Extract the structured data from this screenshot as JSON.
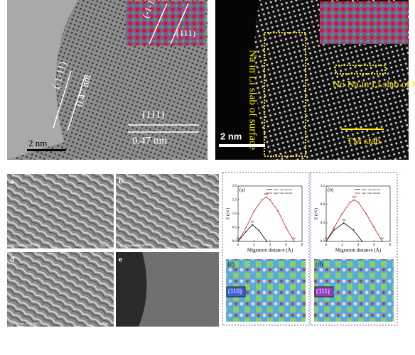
{
  "hrtem_left": {
    "inset_plane_1": "(-1-11)",
    "inset_plane_2": "(111)",
    "plane_1": "(-1-11)",
    "spacing_1": "0.47 nm",
    "plane_2": "(111)",
    "spacing_2": "0.47 nm",
    "scale_bar": "2 nm"
  },
  "haadf_right": {
    "surface_label": "Na in Li slab of surface",
    "bulk_label": "No Na in Li slab of bulk",
    "scale_bar": "2 nm",
    "tm_label": "TM slab"
  },
  "sem": {
    "panels": [
      {
        "label": "a",
        "info": "2.0kV 9.1mm x100k SE(U)",
        "scale": "500nm"
      },
      {
        "label": "b",
        "info": "2.0kV 8.9mm x100k SE(U)",
        "scale": "500nm"
      },
      {
        "label": "d",
        "info": "2.0kV 6.8mm x50.0k SE(U)",
        "scale": "1.00um"
      },
      {
        "label": "e",
        "info": "",
        "scale": ""
      }
    ]
  },
  "charts": [
    {
      "type": "line",
      "label": "(a)",
      "xlabel": "Migration distance (Å)",
      "ylabel": "E (eV)",
      "xlim": [
        0,
        8
      ],
      "xticks": [
        0,
        2,
        4,
        6,
        8
      ],
      "ylim": [
        0,
        2
      ],
      "yticks": [
        {
          "value": 0,
          "label": "0.0"
        },
        {
          "value": 0.5,
          "label": "0.5"
        },
        {
          "value": 1,
          "label": "1.0"
        },
        {
          "value": 1.5,
          "label": "1.5"
        },
        {
          "value": 2,
          "label": "2.0"
        }
      ],
      "series": [
        {
          "name": "path 1 (8a-16c-8a)",
          "color": "#000000",
          "x": [
            0,
            1,
            1.8,
            2.6,
            3.6
          ],
          "values": [
            0,
            0.35,
            0.6,
            0.4,
            0
          ]
        },
        {
          "name": "path 2 (8a-16d-8a)",
          "color": "#d02020",
          "x": [
            0,
            1,
            2,
            3,
            3.5,
            4,
            5,
            6,
            7
          ],
          "values": [
            0,
            0.5,
            1.1,
            1.5,
            1.6,
            1.5,
            1.1,
            0.5,
            0
          ]
        }
      ],
      "annotations": [
        {
          "text": "16d",
          "x": 3.5,
          "y": 1.6
        },
        {
          "text": "16c",
          "x": 1.8,
          "y": 0.6
        },
        {
          "text": "8a",
          "x": 0,
          "y": 0
        },
        {
          "text": "8a",
          "x": 7,
          "y": 0
        }
      ]
    },
    {
      "type": "line",
      "label": "(b)",
      "xlabel": "Migration distance (Å)",
      "ylabel": "E (eV)",
      "xlim": [
        0,
        8
      ],
      "xticks": [
        0,
        2,
        4,
        6,
        8
      ],
      "ylim": [
        0,
        1.2
      ],
      "yticks": [
        {
          "value": 0,
          "label": "0.0"
        },
        {
          "value": 0.4,
          "label": "0.4"
        },
        {
          "value": 0.8,
          "label": "0.8"
        },
        {
          "value": 1.2,
          "label": "1.2"
        }
      ],
      "series": [
        {
          "name": "path 1 (8a-16c-8a)",
          "color": "#000000",
          "x": [
            0,
            1,
            2.2,
            3.4,
            4.5
          ],
          "values": [
            0,
            0.25,
            0.4,
            0.25,
            0
          ]
        },
        {
          "name": "path 2 (8a-16d-8a)",
          "color": "#d02020",
          "x": [
            0,
            1,
            2,
            3,
            3.5,
            4,
            5,
            6,
            7
          ],
          "values": [
            0,
            0.3,
            0.6,
            0.85,
            0.9,
            0.85,
            0.6,
            0.3,
            0
          ]
        }
      ],
      "annotations": [
        {
          "text": "16d",
          "x": 3.5,
          "y": 0.9
        },
        {
          "text": "16c",
          "x": 2.2,
          "y": 0.4
        },
        {
          "text": "8a",
          "x": 0,
          "y": 0
        },
        {
          "text": "8a",
          "x": 7,
          "y": 0
        }
      ]
    }
  ],
  "crystal": {
    "panel_c": "(c)",
    "plane_c": "(110)",
    "panel_d": "(d)",
    "plane_d": "(111)"
  }
}
